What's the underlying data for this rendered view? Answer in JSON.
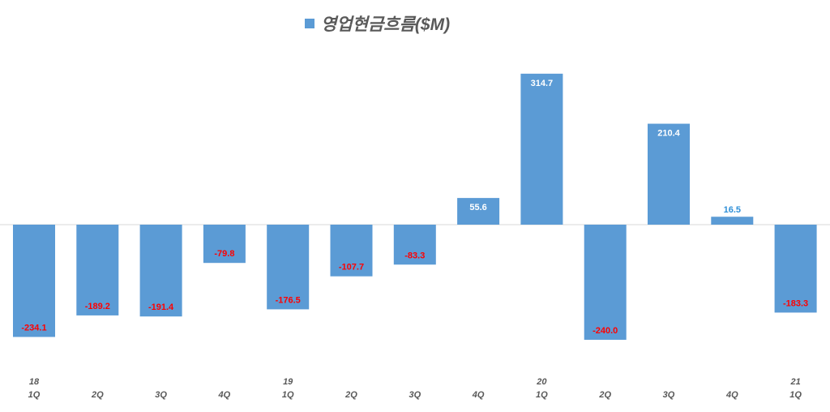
{
  "chart_data": {
    "type": "bar",
    "title": "",
    "legend": [
      {
        "label": "영업현금흐름($M)",
        "color": "#5B9BD5"
      }
    ],
    "legend_placement": "top-center",
    "categories": [
      {
        "year": "18",
        "quarter": "1Q"
      },
      {
        "year": "",
        "quarter": "2Q"
      },
      {
        "year": "",
        "quarter": "3Q"
      },
      {
        "year": "",
        "quarter": "4Q"
      },
      {
        "year": "19",
        "quarter": "1Q"
      },
      {
        "year": "",
        "quarter": "2Q"
      },
      {
        "year": "",
        "quarter": "3Q"
      },
      {
        "year": "",
        "quarter": "4Q"
      },
      {
        "year": "20",
        "quarter": "1Q"
      },
      {
        "year": "",
        "quarter": "2Q"
      },
      {
        "year": "",
        "quarter": "3Q"
      },
      {
        "year": "",
        "quarter": "4Q"
      },
      {
        "year": "21",
        "quarter": "1Q"
      }
    ],
    "series": [
      {
        "name": "영업현금흐름($M)",
        "values": [
          -234.1,
          -189.2,
          -191.4,
          -79.8,
          -176.5,
          -107.7,
          -83.3,
          55.6,
          314.7,
          -240.0,
          210.4,
          16.5,
          -183.3
        ],
        "labels": [
          "-234.1",
          "-189.2",
          "-191.4",
          "-79.8",
          "-176.5",
          "-107.7",
          "-83.3",
          "55.6",
          "314.7",
          "-240.0",
          "210.4",
          "16.5",
          "-183.3"
        ]
      }
    ],
    "colors": {
      "bar": "#5B9BD5",
      "negative_label": "#FF0000",
      "positive_label": "#FFFFFF",
      "small_label": "#2E8FD8",
      "axis_label": "#595959",
      "zero_line": "#D9D9D9"
    },
    "ylim": [
      -240,
      315
    ],
    "grid": false,
    "xlabel": "",
    "ylabel": ""
  }
}
